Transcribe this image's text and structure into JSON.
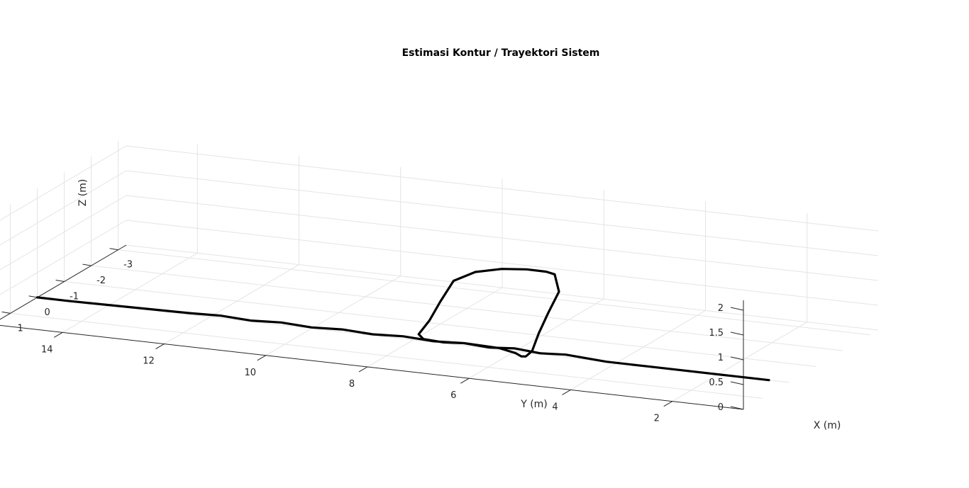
{
  "chart_data": {
    "type": "line",
    "projection": "3d",
    "title": "Estimasi Kontur / Trayektori Sistem",
    "xlabel": "X (m)",
    "ylabel": "Y (m)",
    "zlabel": "Z (m)",
    "xlim": [
      -3.3,
      1.7
    ],
    "ylim": [
      0.6,
      15.4
    ],
    "zlim": [
      0,
      2.2
    ],
    "xticks": [
      -3,
      -2,
      -1,
      0,
      1
    ],
    "yticks": [
      2,
      4,
      6,
      8,
      10,
      12,
      14
    ],
    "zticks": [
      0,
      0.5,
      1,
      1.5,
      2
    ],
    "ztick_labels": [
      "0",
      "0.5",
      "1",
      "1.5",
      "2"
    ],
    "grid": true,
    "series": [
      {
        "color": "#000000",
        "points": [
          {
            "x": 0,
            "y": 1.0,
            "z": 0
          },
          {
            "x": 0,
            "y": 1.8,
            "z": 0
          },
          {
            "x": 0,
            "y": 2.6,
            "z": 0
          },
          {
            "x": 0,
            "y": 3.4,
            "z": 0
          },
          {
            "x": 0,
            "y": 4.2,
            "z": 0
          },
          {
            "x": 0,
            "y": 5.0,
            "z": 0.05
          },
          {
            "x": 0,
            "y": 5.5,
            "z": 0.02
          },
          {
            "x": 0,
            "y": 6.0,
            "z": 0.06
          },
          {
            "x": 0,
            "y": 6.5,
            "z": 0.02
          },
          {
            "x": 0,
            "y": 7.0,
            "z": 0.05
          },
          {
            "x": 0,
            "y": 7.4,
            "z": 0.02
          },
          {
            "x": 0,
            "y": 7.8,
            "z": 0.04
          },
          {
            "x": -0.2,
            "y": 8.0,
            "z": 0.05
          },
          {
            "x": -0.6,
            "y": 8.0,
            "z": 0.2
          },
          {
            "x": -1.0,
            "y": 8.0,
            "z": 0.45
          },
          {
            "x": -1.4,
            "y": 7.95,
            "z": 0.75
          },
          {
            "x": -1.55,
            "y": 7.6,
            "z": 0.92
          },
          {
            "x": -1.4,
            "y": 7.0,
            "z": 1.1
          },
          {
            "x": -1.0,
            "y": 6.3,
            "z": 1.3
          },
          {
            "x": -0.6,
            "y": 5.7,
            "z": 1.45
          },
          {
            "x": -0.25,
            "y": 5.35,
            "z": 1.55
          },
          {
            "x": 0.25,
            "y": 5.0,
            "z": 1.4
          },
          {
            "x": 0.65,
            "y": 5.0,
            "z": 1.1
          },
          {
            "x": 1.0,
            "y": 5.0,
            "z": 0.8
          },
          {
            "x": 1.25,
            "y": 5.0,
            "z": 0.52
          },
          {
            "x": 1.2,
            "y": 5.15,
            "z": 0.38
          },
          {
            "x": 0.8,
            "y": 5.45,
            "z": 0.22
          },
          {
            "x": 0.35,
            "y": 5.8,
            "z": 0.1
          },
          {
            "x": 0,
            "y": 6.3,
            "z": 0.03
          },
          {
            "x": 0,
            "y": 7.0,
            "z": 0.05
          },
          {
            "x": 0,
            "y": 7.6,
            "z": 0.02
          },
          {
            "x": 0,
            "y": 8.2,
            "z": 0.05
          },
          {
            "x": 0,
            "y": 8.8,
            "z": 0.02
          },
          {
            "x": 0,
            "y": 9.4,
            "z": 0.05
          },
          {
            "x": 0,
            "y": 10.0,
            "z": 0.02
          },
          {
            "x": 0,
            "y": 10.6,
            "z": 0.05
          },
          {
            "x": 0,
            "y": 11.2,
            "z": 0.02
          },
          {
            "x": 0,
            "y": 11.8,
            "z": 0.05
          },
          {
            "x": 0,
            "y": 12.4,
            "z": 0.03
          },
          {
            "x": 0,
            "y": 13.2,
            "z": 0.02
          },
          {
            "x": 0,
            "y": 14.0,
            "z": 0.01
          },
          {
            "x": 0,
            "y": 14.8,
            "z": 0
          },
          {
            "x": 0,
            "y": 15.4,
            "z": 0
          }
        ]
      }
    ]
  }
}
